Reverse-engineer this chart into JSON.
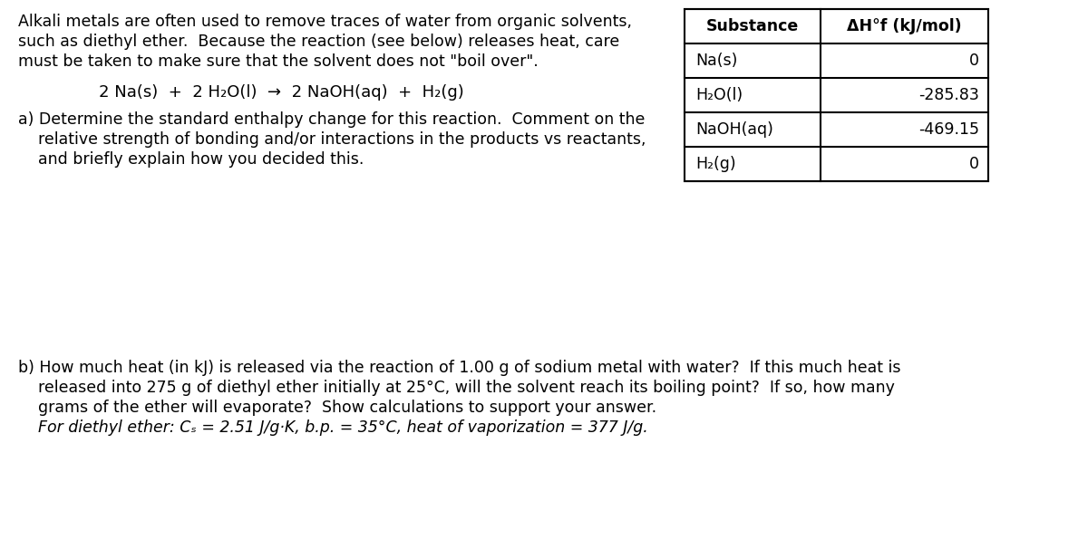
{
  "bg_color": "#ffffff",
  "text_color": "#000000",
  "font_size_body": 12.5,
  "paragraph1_lines": [
    "Alkali metals are often used to remove traces of water from organic solvents,",
    "such as diethyl ether.  Because the reaction (see below) releases heat, care",
    "must be taken to make sure that the solvent does not \"boil over\"."
  ],
  "equation": "2 Na(s)  +  2 H₂O(l)  →  2 NaOH(aq)  +  H₂(g)",
  "part_a_lines": [
    "a) Determine the standard enthalpy change for this reaction.  Comment on the",
    "    relative strength of bonding and/or interactions in the products vs reactants,",
    "    and briefly explain how you decided this."
  ],
  "part_b_line1": "b) How much heat (in kJ) is released via the reaction of 1.00 g of sodium metal with water?  If this much heat is",
  "part_b_line2": "    released into 275 g of diethyl ether initially at 25°C, will the solvent reach its boiling point?  If so, how many",
  "part_b_line3": "    grams of the ether will evaporate?  Show calculations to support your answer.",
  "part_b_line4": "    For diethyl ether: Cₛ = 2.51 J/g·K, b.p. = 35°C, heat of vaporization = 377 J/g.",
  "table_header": [
    "Substance",
    "ΔH°f (kJ/mol)"
  ],
  "table_rows": [
    [
      "Na(s)",
      "0"
    ],
    [
      "H₂O(l)",
      "-285.83"
    ],
    [
      "NaOH(aq)",
      "-469.15"
    ],
    [
      "H₂(g)",
      "0"
    ]
  ]
}
